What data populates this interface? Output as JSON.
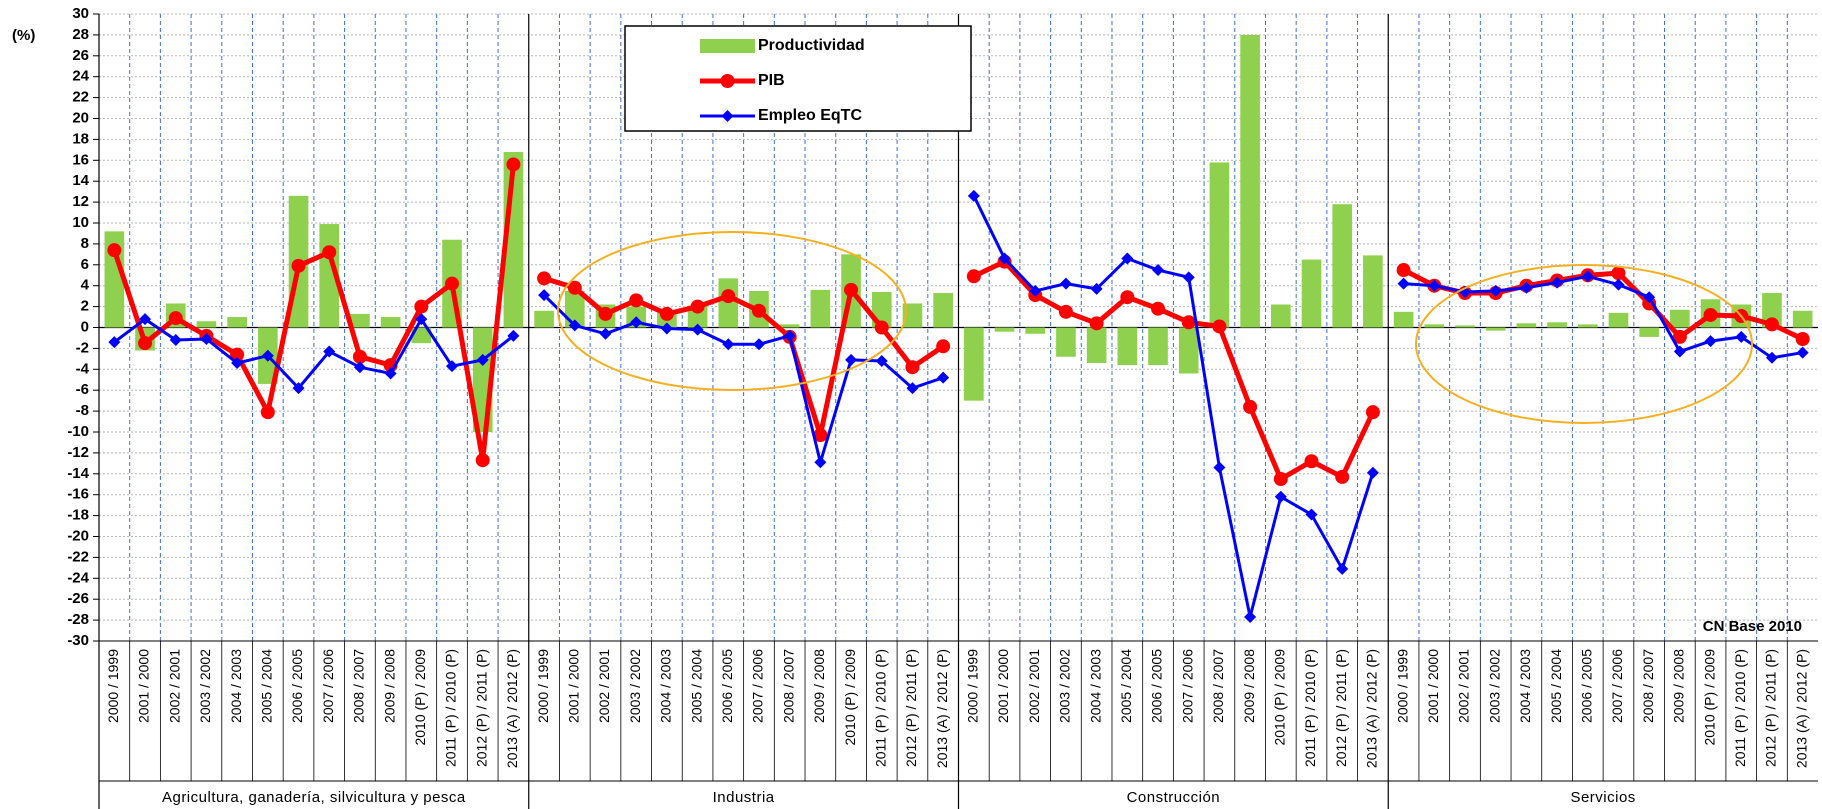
{
  "chart_data": {
    "type": "combo",
    "y_label": "(%)",
    "annotation": "CN Base 2010",
    "ylim": [
      -30,
      30
    ],
    "yticks": [
      -30,
      -28,
      -26,
      -24,
      -22,
      -20,
      -18,
      -16,
      -14,
      -12,
      -10,
      -8,
      -6,
      -4,
      -2,
      0,
      2,
      4,
      6,
      8,
      10,
      12,
      14,
      16,
      18,
      20,
      22,
      24,
      26,
      28,
      30
    ],
    "grid": true,
    "legend": "top",
    "groups": [
      {
        "name": "Agricultura, ganadería, silvicultura y pesca",
        "categories": [
          "2000 / 1999",
          "2001 / 2000",
          "2002 / 2001",
          "2003 / 2002",
          "2004 / 2003",
          "2005 / 2004",
          "2006 / 2005",
          "2007 / 2006",
          "2008 / 2007",
          "2009 / 2008",
          "2010 (P) / 2009",
          "2011 (P) / 2010 (P)",
          "2012 (P) / 2011 (P)",
          "2013 (A) / 2012 (P)"
        ]
      },
      {
        "name": "Industria",
        "categories": [
          "2000 / 1999",
          "2001 / 2000",
          "2002 / 2001",
          "2003 / 2002",
          "2004 / 2003",
          "2005 / 2004",
          "2006 / 2005",
          "2007 / 2006",
          "2008 / 2007",
          "2009 / 2008",
          "2010 (P) / 2009",
          "2011 (P) / 2010 (P)",
          "2012 (P) / 2011 (P)",
          "2013 (A) / 2012 (P)"
        ]
      },
      {
        "name": "Construcción",
        "categories": [
          "2000 / 1999",
          "2001 / 2000",
          "2002 / 2001",
          "2003 / 2002",
          "2004 / 2003",
          "2005 / 2004",
          "2006 / 2005",
          "2007 / 2006",
          "2008 / 2007",
          "2009 / 2008",
          "2010 (P) / 2009",
          "2011 (P) / 2010 (P)",
          "2012 (P) / 2011 (P)",
          "2013 (A) / 2012 (P)"
        ]
      },
      {
        "name": "Servicios",
        "categories": [
          "2000 / 1999",
          "2001 / 2000",
          "2002 / 2001",
          "2003 / 2002",
          "2004 / 2003",
          "2005 / 2004",
          "2006 / 2005",
          "2007 / 2006",
          "2008 / 2007",
          "2009 / 2008",
          "2010 (P) / 2009",
          "2011 (P) / 2010 (P)",
          "2012 (P) / 2011 (P)",
          "2013 (A) / 2012 (P)"
        ]
      }
    ],
    "series": [
      {
        "name": "Productividad",
        "type": "bar",
        "color": "#8fd14f",
        "values": [
          [
            9.2,
            -2.2,
            2.3,
            0.6,
            1.0,
            -5.4,
            12.6,
            9.9,
            1.3,
            1.0,
            -1.5,
            8.4,
            -10.0,
            16.8
          ],
          [
            1.6,
            3.5,
            2.2,
            2.0,
            1.4,
            2.1,
            4.7,
            3.5,
            0.3,
            3.6,
            7.0,
            3.4,
            2.3,
            3.3
          ],
          [
            -7.0,
            -0.4,
            -0.6,
            -2.8,
            -3.4,
            -3.6,
            -3.6,
            -4.4,
            15.8,
            28.0,
            2.2,
            6.5,
            11.8,
            6.9
          ],
          [
            1.5,
            0.3,
            0.2,
            -0.3,
            0.4,
            0.5,
            0.3,
            1.4,
            -0.9,
            1.7,
            2.7,
            2.2,
            3.3,
            1.6
          ]
        ]
      },
      {
        "name": "PIB",
        "type": "line",
        "marker": "circle",
        "color": "#ff0000",
        "values": [
          [
            7.4,
            -1.5,
            0.9,
            -0.8,
            -2.6,
            -8.1,
            5.9,
            7.2,
            -2.8,
            -3.6,
            2.0,
            4.2,
            -12.7,
            15.6
          ],
          [
            4.7,
            3.8,
            1.3,
            2.6,
            1.3,
            2.0,
            3.0,
            1.6,
            -0.9,
            -10.3,
            3.6,
            0.0,
            -3.8,
            -1.8
          ],
          [
            4.9,
            6.3,
            3.1,
            1.5,
            0.4,
            2.9,
            1.8,
            0.5,
            0.1,
            -7.6,
            -14.5,
            -12.8,
            -14.3,
            -8.1
          ],
          [
            5.5,
            4.0,
            3.3,
            3.3,
            4.0,
            4.5,
            5.0,
            5.2,
            2.3,
            -0.9,
            1.2,
            1.1,
            0.3,
            -1.1
          ]
        ]
      },
      {
        "name": "Empleo EqTC",
        "type": "line",
        "marker": "diamond",
        "color": "#0000ff",
        "values": [
          [
            -1.4,
            0.8,
            -1.2,
            -1.1,
            -3.4,
            -2.7,
            -5.8,
            -2.3,
            -3.8,
            -4.4,
            0.8,
            -3.7,
            -3.1,
            -0.8
          ],
          [
            3.1,
            0.2,
            -0.6,
            0.5,
            -0.1,
            -0.2,
            -1.6,
            -1.6,
            -0.8,
            -12.9,
            -3.1,
            -3.2,
            -5.8,
            -4.8
          ],
          [
            12.6,
            6.6,
            3.5,
            4.2,
            3.7,
            6.6,
            5.5,
            4.8,
            -13.4,
            -27.7,
            -16.2,
            -17.9,
            -23.1,
            -13.9
          ],
          [
            4.2,
            4.0,
            3.4,
            3.5,
            3.8,
            4.3,
            4.9,
            4.1,
            2.9,
            -2.3,
            -1.3,
            -0.9,
            -2.9,
            -2.4
          ]
        ]
      }
    ]
  }
}
